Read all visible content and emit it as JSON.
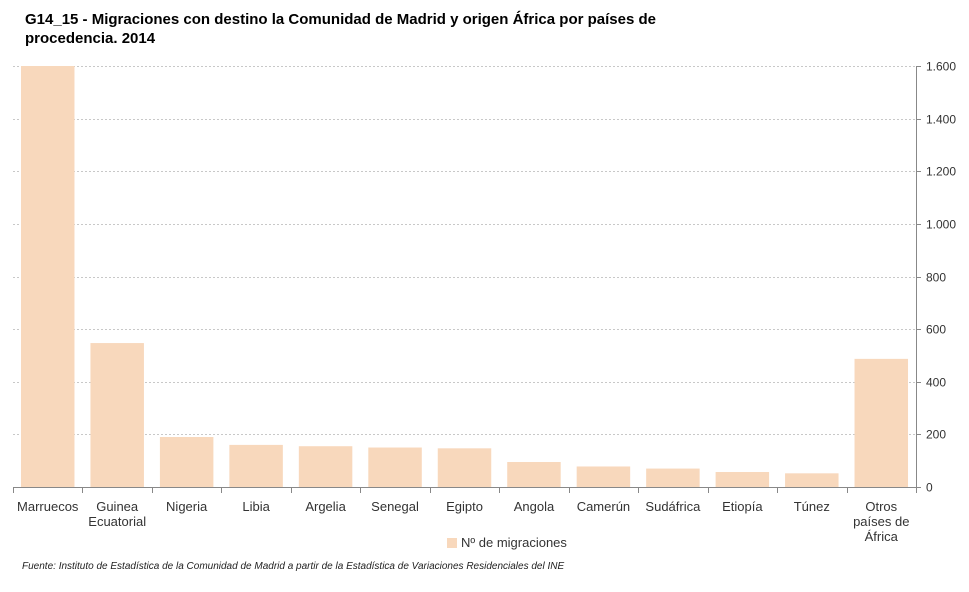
{
  "chart_data": {
    "type": "bar",
    "title": "G14_15 - Migraciones con destino la Comunidad de Madrid y origen África por países de procedencia. 2014",
    "categories": [
      "Marruecos",
      "Guinea Ecuatorial",
      "Nigeria",
      "Libia",
      "Argelia",
      "Senegal",
      "Egipto",
      "Angola",
      "Camerún",
      "Sudáfrica",
      "Etiopía",
      "Túnez",
      "Otros países de África"
    ],
    "category_lines": [
      [
        "Marruecos"
      ],
      [
        "Guinea",
        "Ecuatorial"
      ],
      [
        "Nigeria"
      ],
      [
        "Libia"
      ],
      [
        "Argelia"
      ],
      [
        "Senegal"
      ],
      [
        "Egipto"
      ],
      [
        "Angola"
      ],
      [
        "Camerún"
      ],
      [
        "Sudáfrica"
      ],
      [
        "Etiopía"
      ],
      [
        "Túnez"
      ],
      [
        "Otros",
        "países de",
        "África"
      ]
    ],
    "series": [
      {
        "name": "Nº de migraciones",
        "values": [
          1600,
          547,
          190,
          160,
          155,
          150,
          147,
          95,
          78,
          70,
          57,
          52,
          487
        ]
      }
    ],
    "ylim": [
      0,
      1600
    ],
    "yticks": [
      0,
      200,
      400,
      600,
      800,
      1000,
      1200,
      1400,
      1600
    ],
    "ytick_labels": [
      "0",
      "200",
      "400",
      "600",
      "800",
      "1.000",
      "1.200",
      "1.400",
      "1.600"
    ],
    "y_axis_side": "right",
    "xlabel": "",
    "ylabel": "",
    "grid": true,
    "legend_position": "bottom-center"
  },
  "colors": {
    "bar": "#f8d8bc",
    "grid": "#c8c8c8",
    "axis": "#888888",
    "tick_text": "#333333"
  },
  "legend": {
    "label": "Nº de migraciones"
  },
  "source": "Fuente: Instituto de Estadística de la Comunidad de Madrid a partir de la Estadística de Variaciones Residenciales del INE"
}
